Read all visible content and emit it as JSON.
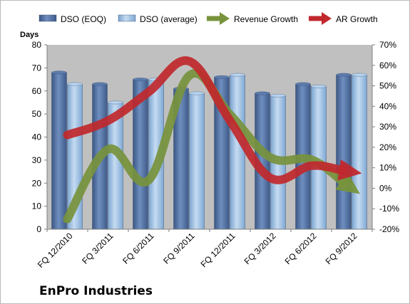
{
  "chart_data": {
    "type": "bar",
    "title": "",
    "footer_title": "EnPro Industries",
    "ylabel_left": "Days",
    "ylim_left": [
      0,
      80
    ],
    "left_ticks": [
      "0",
      "10",
      "20",
      "30",
      "40",
      "50",
      "60",
      "70",
      "80"
    ],
    "ylim_right": [
      -0.2,
      0.7
    ],
    "right_ticks": [
      "-20%",
      "-10%",
      "0%",
      "10%",
      "20%",
      "30%",
      "40%",
      "50%",
      "60%",
      "70%"
    ],
    "categories": [
      "FQ 12/2010",
      "FQ 3/2011",
      "FQ 6/2011",
      "FQ 9/2011",
      "FQ 12/2011",
      "FQ 3/2012",
      "FQ 6/2012",
      "FQ 9/2012"
    ],
    "legend_position": "top",
    "grid": false,
    "series": [
      {
        "name": "DSO (EOQ)",
        "kind": "bar",
        "axis": "left",
        "color": "#4f6b9a",
        "values": [
          68,
          63,
          65,
          61,
          66,
          59,
          63,
          67
        ]
      },
      {
        "name": "DSO (average)",
        "kind": "bar",
        "axis": "left",
        "color": "#8fb4d9",
        "values": [
          63,
          55,
          65,
          59,
          67,
          58,
          62,
          67
        ]
      },
      {
        "name": "Revenue Growth",
        "kind": "arrow-line",
        "axis": "right",
        "color": "#77933c",
        "values": [
          -0.15,
          0.19,
          0.04,
          0.55,
          0.36,
          0.15,
          0.14,
          0.0
        ]
      },
      {
        "name": "AR Growth",
        "kind": "arrow-line",
        "axis": "right",
        "color": "#c0282d",
        "values": [
          0.26,
          0.33,
          0.47,
          0.62,
          0.33,
          0.05,
          0.11,
          0.08
        ]
      }
    ]
  }
}
